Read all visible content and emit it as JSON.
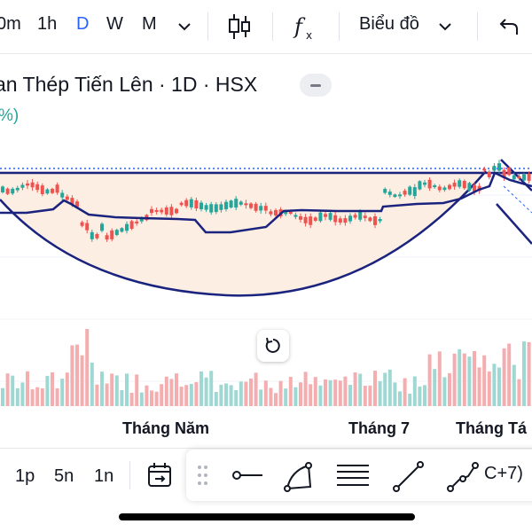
{
  "toolbar": {
    "timeframes": [
      "0m",
      "1h",
      "D",
      "W",
      "M"
    ],
    "active_timeframe": "D",
    "chart_type_label": "Biểu đồ",
    "icons": [
      "chevron-down-icon",
      "candlestick-icon",
      "indicators-fx-icon",
      "undo-icon"
    ]
  },
  "symbol": {
    "title": "an Thép Tiến Lên · 1D · HSX",
    "change_text": "%)"
  },
  "chart": {
    "candle_up_color": "#26a69a",
    "candle_down_color": "#ef5350",
    "pattern_fill": "#fdeee3",
    "pattern_line": "#1a237e",
    "x_labels": [
      "Tháng Năm",
      "Tháng 7",
      "Tháng Tá"
    ]
  },
  "bottom": {
    "ranges": [
      "1p",
      "5n",
      "1n"
    ],
    "hotkey_text": "C+7)",
    "icons": [
      "calendar-goto-icon",
      "drag-handle-icon",
      "horizontal-ray-icon",
      "pen-curve-icon",
      "parallel-lines-icon",
      "trend-line-icon",
      "path-icon"
    ]
  }
}
